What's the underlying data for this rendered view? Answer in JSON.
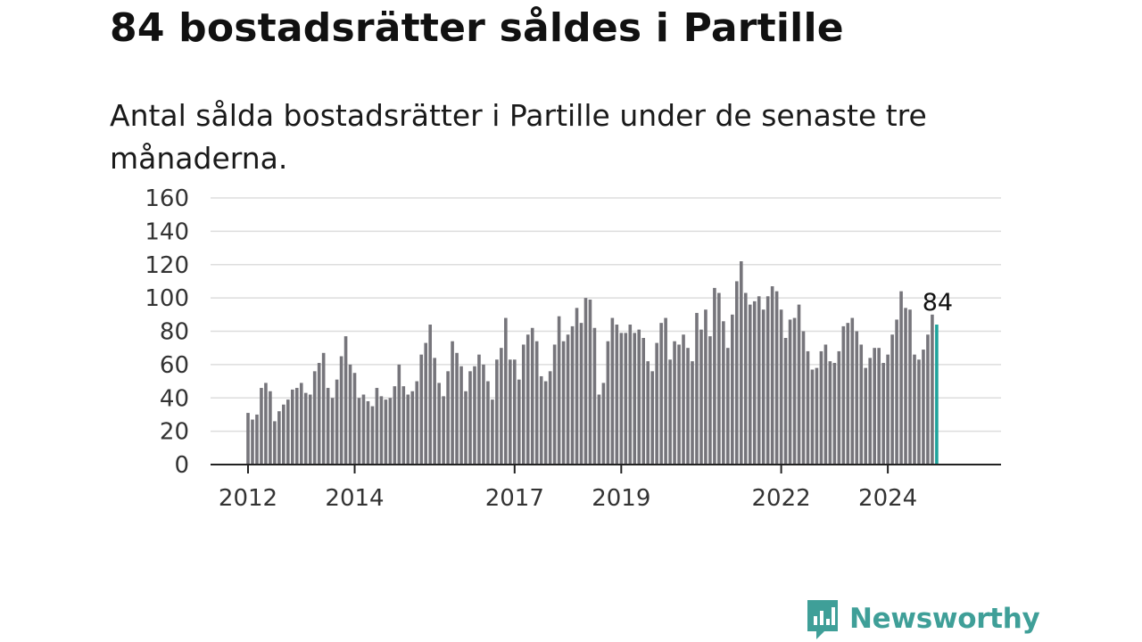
{
  "title": "84 bostadsrätter såldes i Partille",
  "subtitle": "Antal sålda bostadsrätter i Partille under de senaste tre månaderna.",
  "brand": {
    "name": "Newsworthy",
    "icon": "newsworthy-logo-icon"
  },
  "colors": {
    "bar": "#76757b",
    "highlight": "#1fa39c",
    "grid": "#dddddd",
    "axis": "#222222",
    "brand": "#3f9f98"
  },
  "chart_data": {
    "type": "bar",
    "title": "84 bostadsrätter såldes i Partille",
    "xlabel": "",
    "ylabel": "",
    "ylim": [
      0,
      160
    ],
    "yticks": [
      "0",
      "20",
      "40",
      "60",
      "80",
      "100",
      "120",
      "140",
      "160"
    ],
    "x_start": "2012-01",
    "x_end": "2025-01",
    "x_ticks": [
      {
        "label": "2012",
        "index": 0
      },
      {
        "label": "2014",
        "index": 24
      },
      {
        "label": "2017",
        "index": 60
      },
      {
        "label": "2019",
        "index": 84
      },
      {
        "label": "2022",
        "index": 120
      },
      {
        "label": "2024",
        "index": 144
      }
    ],
    "highlight_label": "84",
    "grid": true,
    "values": [
      31,
      27,
      30,
      46,
      49,
      44,
      26,
      32,
      36,
      39,
      45,
      46,
      49,
      43,
      42,
      56,
      61,
      67,
      46,
      40,
      51,
      65,
      77,
      60,
      55,
      40,
      42,
      38,
      35,
      46,
      41,
      39,
      40,
      47,
      60,
      47,
      42,
      44,
      50,
      66,
      73,
      84,
      64,
      49,
      41,
      56,
      74,
      67,
      59,
      44,
      56,
      59,
      66,
      60,
      50,
      39,
      63,
      70,
      88,
      63,
      63,
      51,
      72,
      78,
      82,
      74,
      53,
      50,
      56,
      72,
      89,
      74,
      78,
      83,
      94,
      85,
      100,
      99,
      82,
      42,
      49,
      74,
      88,
      84,
      79,
      79,
      84,
      79,
      81,
      76,
      62,
      56,
      73,
      85,
      88,
      63,
      74,
      72,
      78,
      70,
      62,
      91,
      81,
      93,
      77,
      106,
      103,
      86,
      70,
      90,
      110,
      122,
      103,
      96,
      98,
      101,
      93,
      101,
      107,
      104,
      93,
      76,
      87,
      88,
      96,
      80,
      68,
      57,
      58,
      68,
      72,
      62,
      61,
      68,
      83,
      85,
      88,
      80,
      72,
      58,
      64,
      70,
      70,
      61,
      66,
      78,
      87,
      104,
      94,
      93,
      66,
      63,
      69,
      78,
      90,
      84
    ]
  }
}
